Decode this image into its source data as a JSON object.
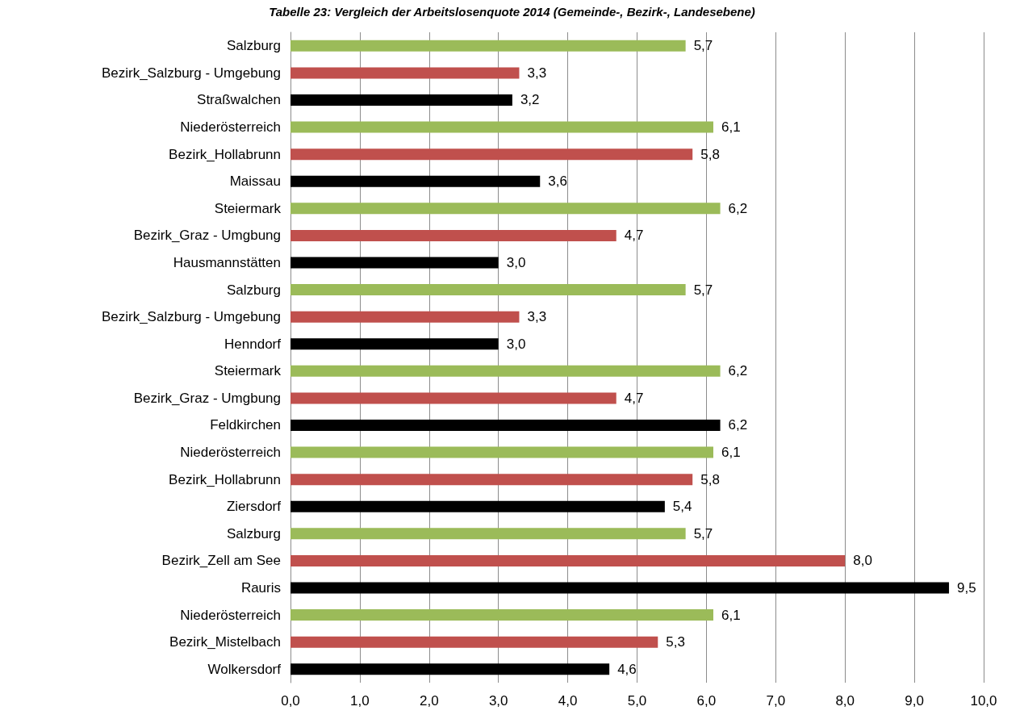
{
  "chart_data": {
    "type": "bar",
    "orientation": "horizontal",
    "title": "Tabelle 23: Vergleich der Arbeitslosenquote 2014 (Gemeinde-, Bezirk-, Landesebene)",
    "categories": [
      "Salzburg",
      "Bezirk_Salzburg - Umgebung",
      "Straßwalchen",
      "Niederösterreich",
      "Bezirk_Hollabrunn",
      "Maissau",
      "Steiermark",
      "Bezirk_Graz - Umgbung",
      "Hausmannstätten",
      "Salzburg",
      "Bezirk_Salzburg - Umgebung",
      "Henndorf",
      "Steiermark",
      "Bezirk_Graz - Umgbung",
      "Feldkirchen",
      "Niederösterreich",
      "Bezirk_Hollabrunn",
      "Ziersdorf",
      "Salzburg",
      "Bezirk_Zell am See",
      "Rauris",
      "Niederösterreich",
      "Bezirk_Mistelbach",
      "Wolkersdorf"
    ],
    "values": [
      5.7,
      3.3,
      3.2,
      6.1,
      5.8,
      3.6,
      6.2,
      4.7,
      3.0,
      5.7,
      3.3,
      3.0,
      6.2,
      4.7,
      6.2,
      6.1,
      5.8,
      5.4,
      5.7,
      8.0,
      9.5,
      6.1,
      5.3,
      4.6
    ],
    "colors": [
      "#9bbb59",
      "#c0504d",
      "#000000",
      "#9bbb59",
      "#c0504d",
      "#000000",
      "#9bbb59",
      "#c0504d",
      "#000000",
      "#9bbb59",
      "#c0504d",
      "#000000",
      "#9bbb59",
      "#c0504d",
      "#000000",
      "#9bbb59",
      "#c0504d",
      "#000000",
      "#9bbb59",
      "#c0504d",
      "#000000",
      "#9bbb59",
      "#c0504d",
      "#000000"
    ],
    "value_labels": [
      "5,7",
      "3,3",
      "3,2",
      "6,1",
      "5,8",
      "3,6",
      "6,2",
      "4,7",
      "3,0",
      "5,7",
      "3,3",
      "3,0",
      "6,2",
      "4,7",
      "6,2",
      "6,1",
      "5,8",
      "5,4",
      "5,7",
      "8,0",
      "9,5",
      "6,1",
      "5,3",
      "4,6"
    ],
    "xlim": [
      0,
      10
    ],
    "xticks": [
      {
        "value": 0,
        "label": "0,0"
      },
      {
        "value": 1,
        "label": "1,0"
      },
      {
        "value": 2,
        "label": "2,0"
      },
      {
        "value": 3,
        "label": "3,0"
      },
      {
        "value": 4,
        "label": "4,0"
      },
      {
        "value": 5,
        "label": "5,0"
      },
      {
        "value": 6,
        "label": "6,0"
      },
      {
        "value": 7,
        "label": "7,0"
      },
      {
        "value": 8,
        "label": "8,0"
      },
      {
        "value": 9,
        "label": "9,0"
      },
      {
        "value": 10,
        "label": "10,0"
      }
    ],
    "grid": "x"
  }
}
